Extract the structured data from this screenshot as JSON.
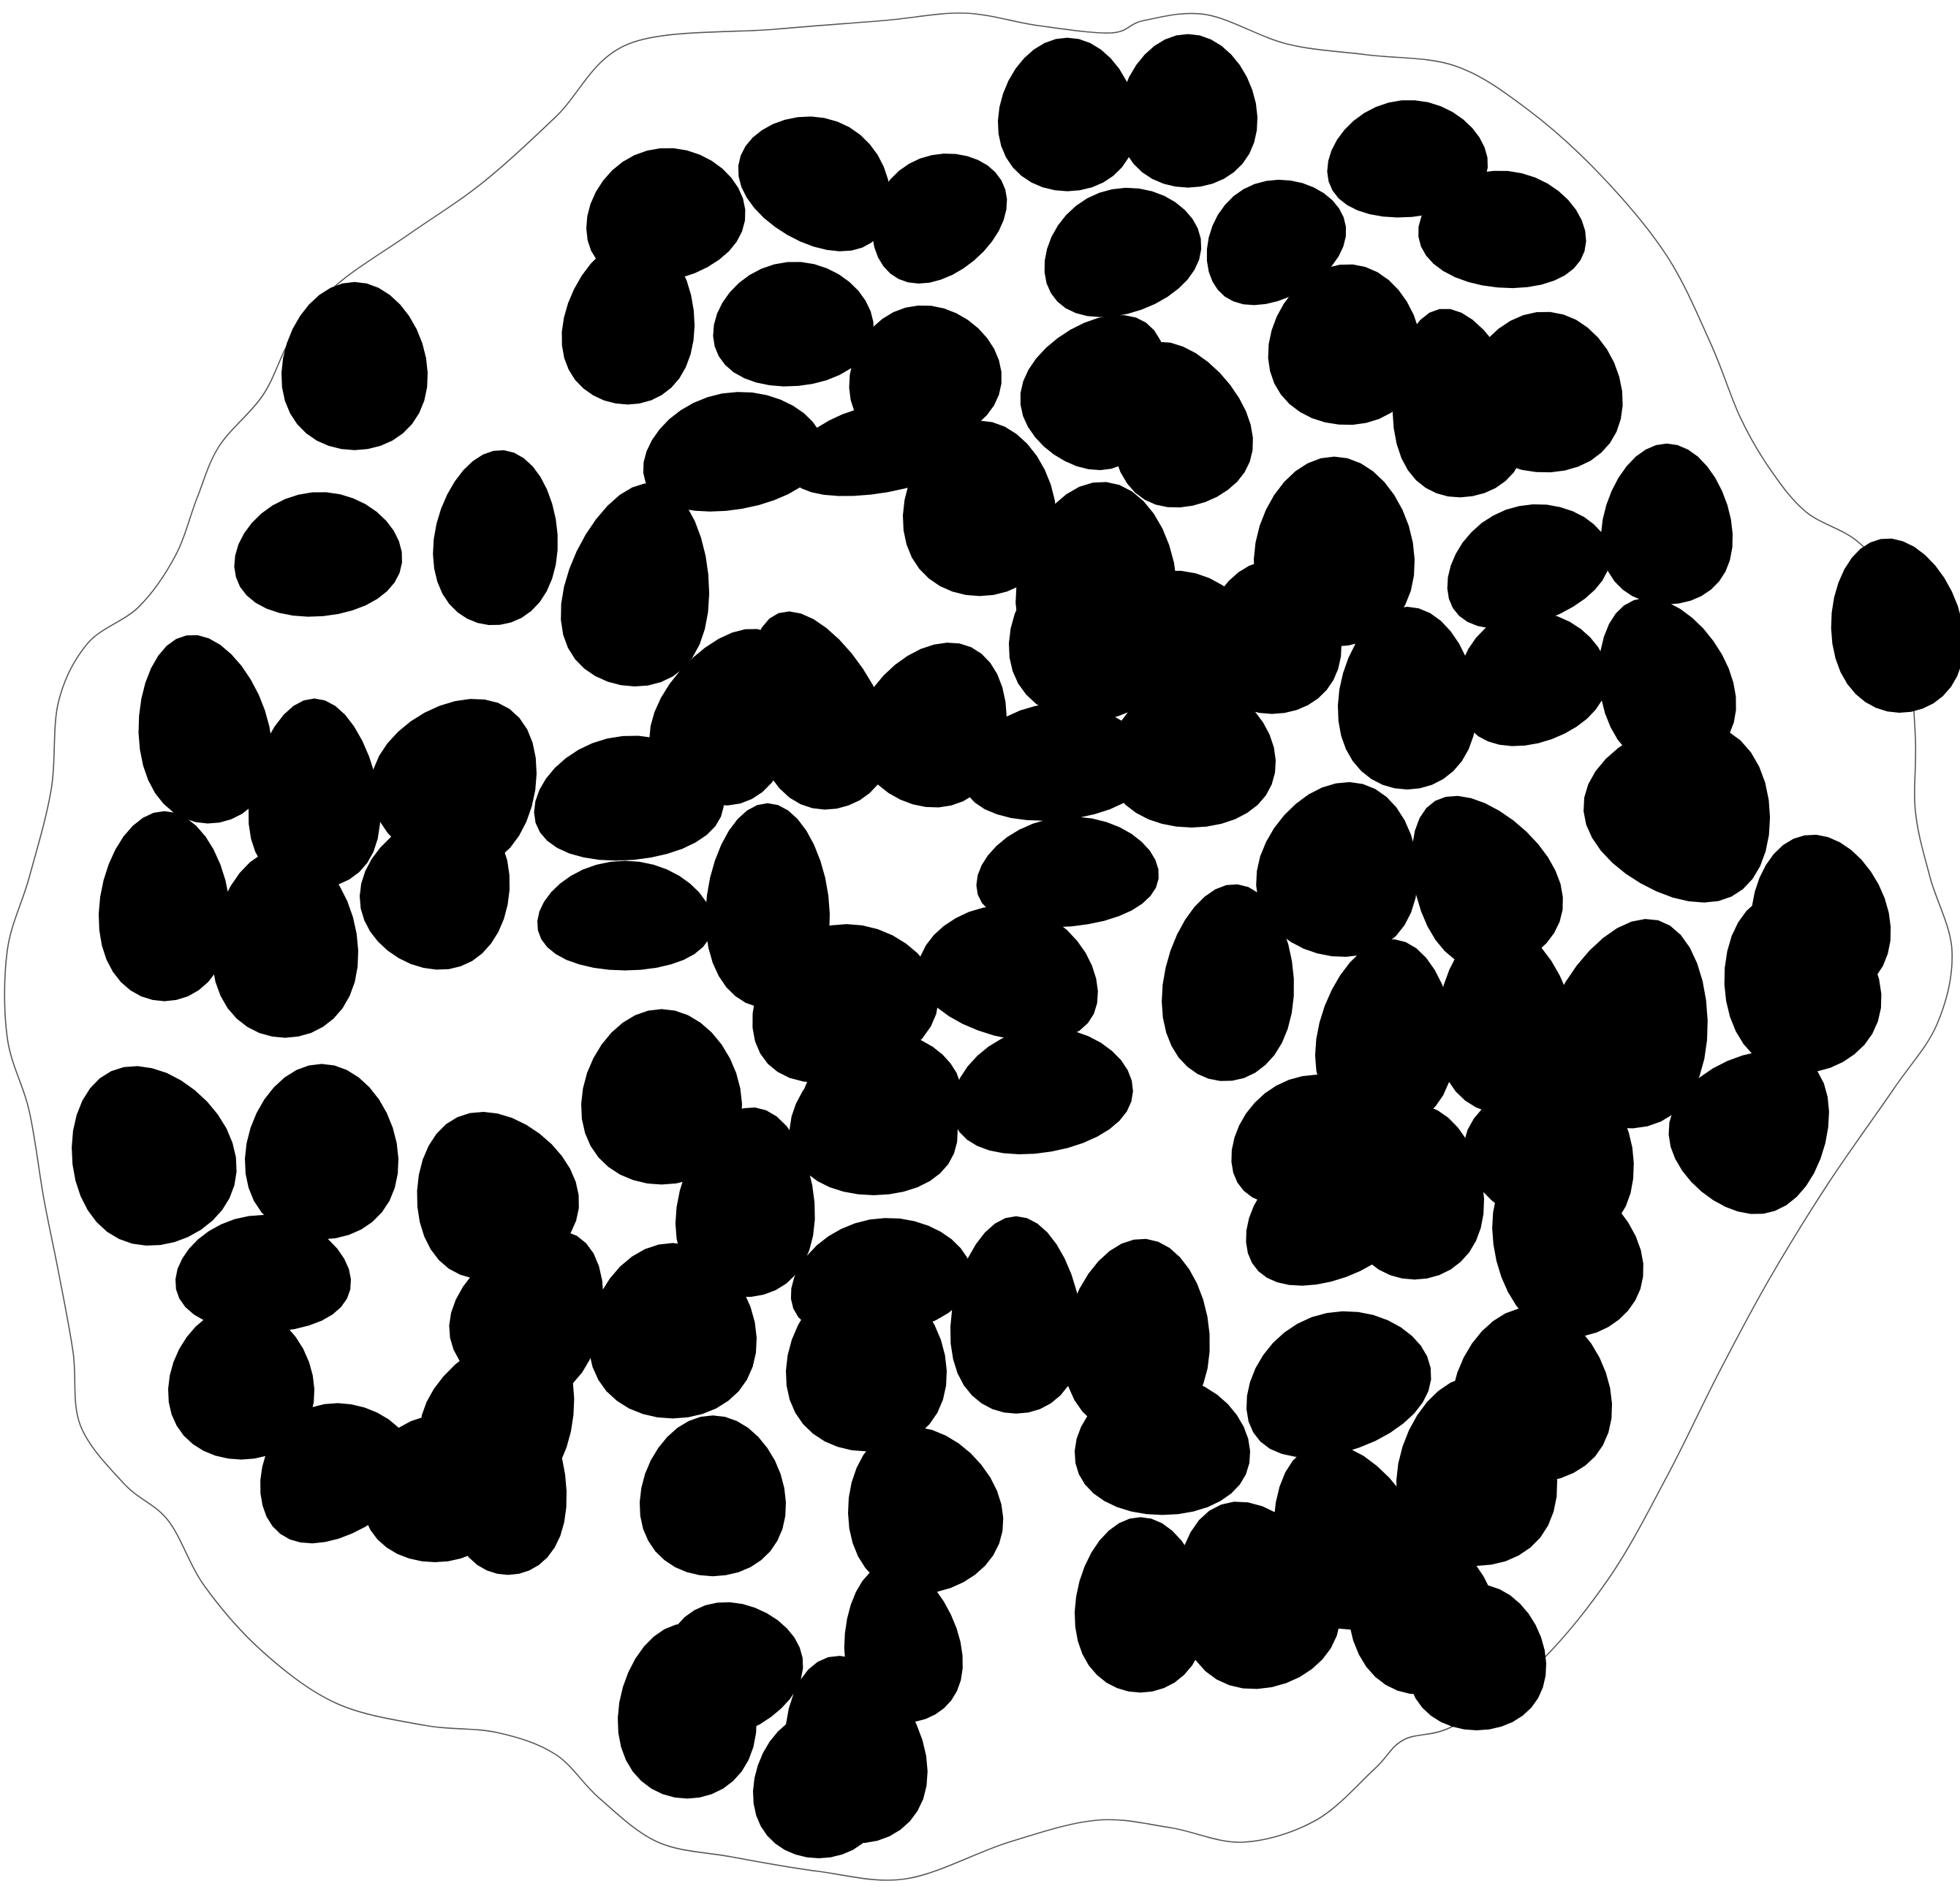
{
  "illustration": {
    "colors": {
      "background": "#ffffff",
      "blob_fill": "#000000",
      "outline_stroke": "#555555"
    }
  }
}
